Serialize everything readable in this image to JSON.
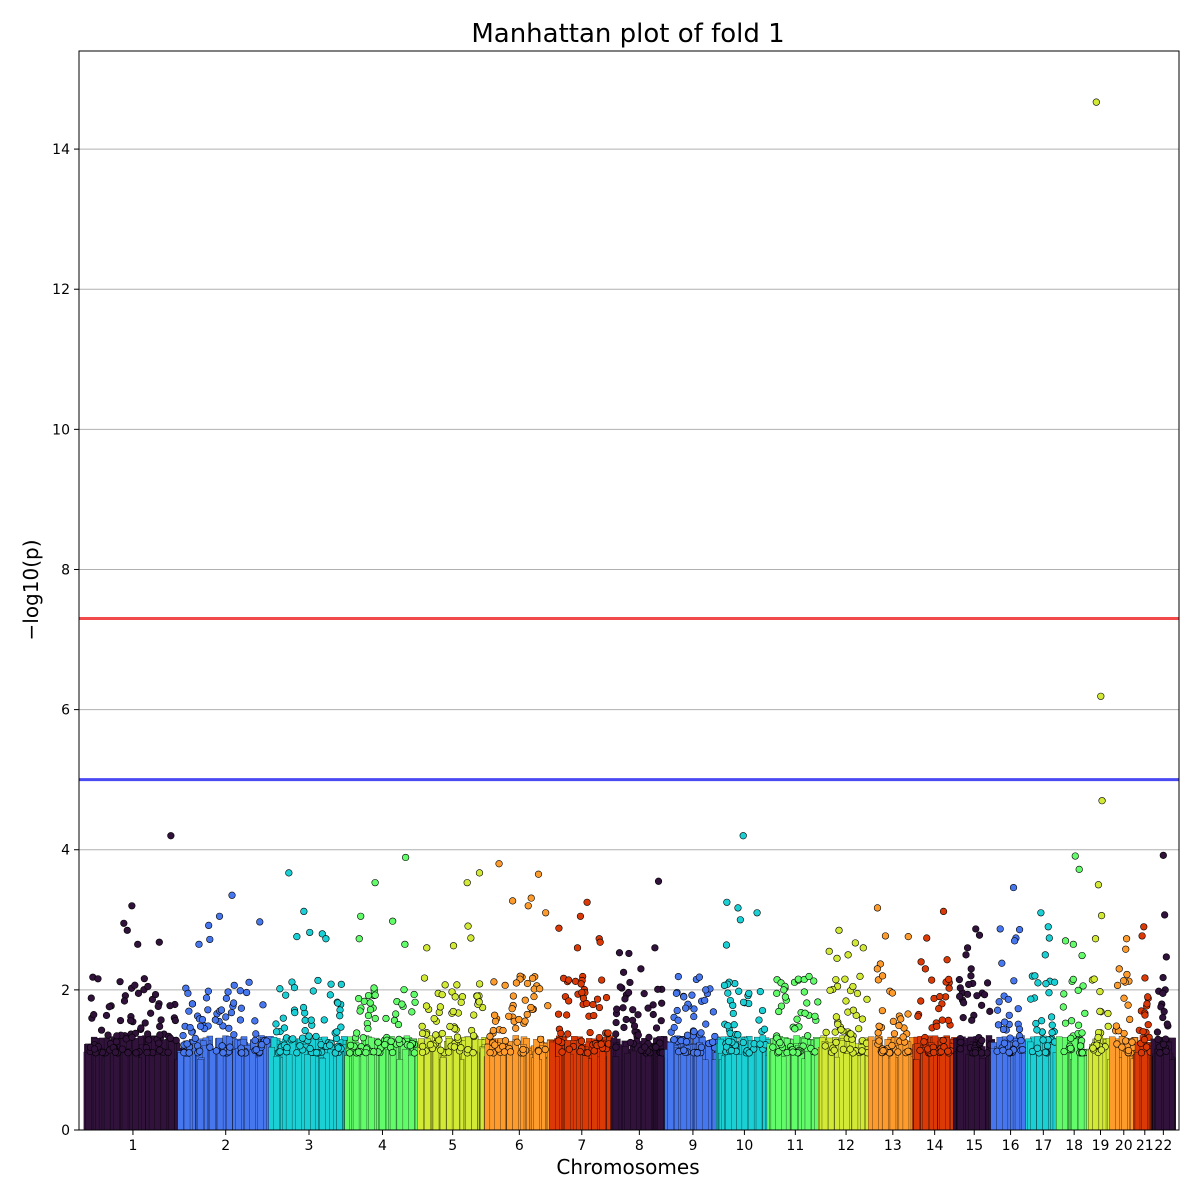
{
  "chart_data": {
    "type": "scatter",
    "title": "Manhattan plot of fold 1",
    "xlabel": "Chromosomes",
    "ylabel": "−log10(p)",
    "ylim": [
      0,
      15.4
    ],
    "yticks": [
      0,
      2,
      4,
      6,
      8,
      10,
      12,
      14
    ],
    "grid": "horizontal",
    "thresholds": [
      {
        "value": 7.3,
        "color": "#f24a4a"
      },
      {
        "value": 5.0,
        "color": "#4a4af2"
      }
    ],
    "chromosomes": [
      {
        "label": "1",
        "color": "#30123b",
        "max": 4.2,
        "top": [
          4.2,
          3.2,
          2.95,
          2.85,
          2.68,
          2.65
        ]
      },
      {
        "label": "2",
        "color": "#4777ef",
        "max": 3.35,
        "top": [
          3.35,
          3.05,
          2.97,
          2.92,
          2.72,
          2.65
        ]
      },
      {
        "label": "3",
        "color": "#1bd0d5",
        "max": 3.67,
        "top": [
          3.67,
          3.12,
          2.82,
          2.8,
          2.76,
          2.73
        ]
      },
      {
        "label": "4",
        "color": "#62fc6b",
        "max": 3.89,
        "top": [
          3.89,
          3.53,
          3.05,
          2.98,
          2.73,
          2.65
        ]
      },
      {
        "label": "5",
        "color": "#d2e935",
        "max": 3.67,
        "top": [
          3.67,
          3.53,
          2.91,
          2.74,
          2.63,
          2.6
        ]
      },
      {
        "label": "6",
        "color": "#fe9b2d",
        "max": 3.8,
        "top": [
          3.8,
          3.65,
          3.31,
          3.27,
          3.2,
          3.1
        ]
      },
      {
        "label": "7",
        "color": "#db3a07",
        "max": 3.25,
        "top": [
          3.25,
          3.05,
          2.88,
          2.73,
          2.68,
          2.6
        ]
      },
      {
        "label": "8",
        "color": "#30123b",
        "max": 3.55,
        "top": [
          3.55,
          2.6,
          2.53,
          2.52,
          2.3,
          2.25
        ]
      },
      {
        "label": "9",
        "color": "#4777ef",
        "max": 2.0,
        "top": [
          2.0,
          1.95,
          1.9,
          1.85
        ]
      },
      {
        "label": "10",
        "color": "#1bd0d5",
        "max": 4.2,
        "top": [
          4.2,
          3.25,
          3.17,
          3.1,
          3.0,
          2.64
        ]
      },
      {
        "label": "11",
        "color": "#62fc6b",
        "max": 2.1,
        "top": [
          2.1,
          2.05,
          2.0,
          1.97,
          1.95
        ]
      },
      {
        "label": "12",
        "color": "#d2e935",
        "max": 2.85,
        "top": [
          2.85,
          2.67,
          2.6,
          2.55,
          2.5,
          2.45
        ]
      },
      {
        "label": "13",
        "color": "#fe9b2d",
        "max": 3.17,
        "top": [
          3.17,
          2.77,
          2.76,
          2.37,
          2.3,
          2.2
        ]
      },
      {
        "label": "14",
        "color": "#db3a07",
        "max": 3.12,
        "top": [
          3.12,
          2.74,
          2.43,
          2.4,
          2.3,
          2.15
        ]
      },
      {
        "label": "15",
        "color": "#30123b",
        "max": 2.87,
        "top": [
          2.87,
          2.78,
          2.6,
          2.5,
          2.3,
          2.2
        ]
      },
      {
        "label": "16",
        "color": "#4777ef",
        "max": 3.46,
        "top": [
          3.46,
          2.87,
          2.86,
          2.74,
          2.7,
          2.38
        ]
      },
      {
        "label": "17",
        "color": "#1bd0d5",
        "max": 3.1,
        "top": [
          3.1,
          2.9,
          2.74,
          2.5,
          2.2,
          2.1
        ]
      },
      {
        "label": "18",
        "color": "#62fc6b",
        "max": 3.91,
        "top": [
          3.91,
          3.72,
          2.7,
          2.65,
          2.49,
          2.15
        ]
      },
      {
        "label": "19",
        "color": "#d2e935",
        "max": 14.67,
        "top": [
          14.67,
          6.19,
          4.7,
          3.5,
          3.06,
          2.73
        ]
      },
      {
        "label": "20",
        "color": "#fe9b2d",
        "max": 2.73,
        "top": [
          2.73,
          2.58,
          2.3,
          2.22,
          2.13
        ]
      },
      {
        "label": "21",
        "color": "#db3a07",
        "max": 2.9,
        "top": [
          2.9,
          2.77,
          2.17,
          1.9,
          1.8
        ]
      },
      {
        "label": "22",
        "color": "#30123b",
        "max": 3.92,
        "top": [
          3.92,
          3.07,
          2.47,
          2.0,
          1.95
        ]
      }
    ]
  }
}
